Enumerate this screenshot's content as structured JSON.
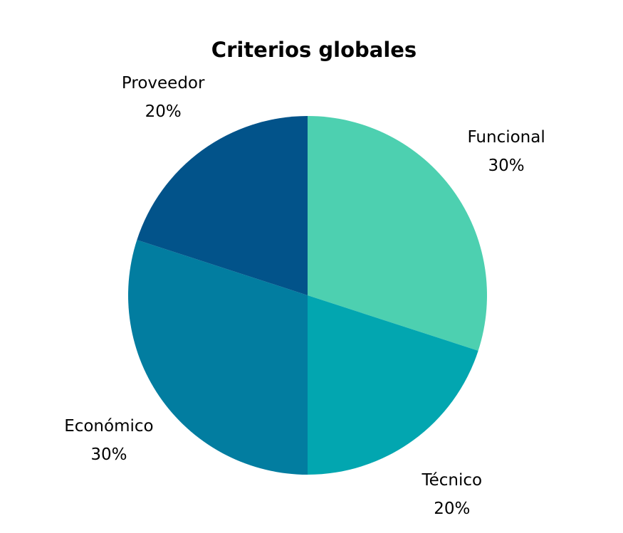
{
  "chart_data": {
    "type": "pie",
    "title": "Criterios globales",
    "slices": [
      {
        "label": "Funcional",
        "value": 30,
        "value_label": "30%",
        "color": "#4dd0b0"
      },
      {
        "label": "Técnico",
        "value": 20,
        "value_label": "20%",
        "color": "#02a6b0"
      },
      {
        "label": "Económico",
        "value": 30,
        "value_label": "30%",
        "color": "#027da0"
      },
      {
        "label": "Proveedor",
        "value": 20,
        "value_label": "20%",
        "color": "#02538a"
      }
    ],
    "start_angle": "12 o'clock",
    "direction": "clockwise",
    "labels_outside": true
  }
}
